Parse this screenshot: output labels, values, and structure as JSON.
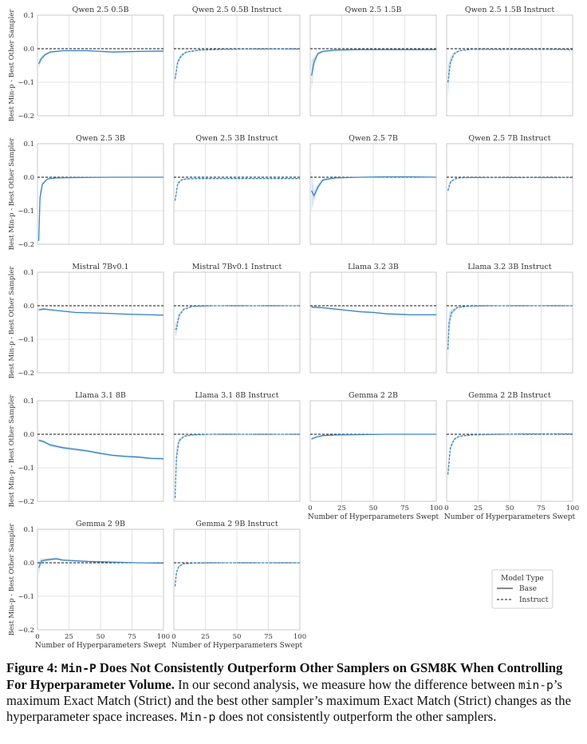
{
  "chart_data": {
    "type": "line",
    "grid": true,
    "ylabel": "Best Min-p - Best Other Sampler",
    "xlabel": "Number of Hyperparameters Swept",
    "xlim": [
      0,
      100
    ],
    "ylim": [
      -0.2,
      0.1
    ],
    "xticks": [
      0,
      25,
      50,
      75,
      100
    ],
    "yticks": [
      0.1,
      0.0,
      -0.1,
      -0.2
    ],
    "ytick_labels": [
      "0.1",
      "0.0",
      "−0.1",
      "−0.2"
    ],
    "reference_line": 0.0,
    "line_color": "#3a86c3",
    "legend": {
      "title": "Model Type",
      "position": "lower-right",
      "entries": [
        {
          "label": "Base",
          "style": "solid"
        },
        {
          "label": "Instruct",
          "style": "dashed"
        }
      ]
    },
    "panels": [
      {
        "title": "Qwen 2.5 0.5B",
        "model_type": "Base",
        "x": [
          1,
          3,
          6,
          10,
          20,
          40,
          60,
          80,
          100
        ],
        "y": [
          -0.045,
          -0.03,
          -0.018,
          -0.01,
          -0.006,
          -0.006,
          -0.01,
          -0.008,
          -0.007
        ],
        "band": [
          0.012,
          0.008,
          0.004,
          0.003,
          0.002,
          0.002,
          0.002,
          0.002,
          0.002
        ]
      },
      {
        "title": "Qwen 2.5 0.5B Instruct",
        "model_type": "Instruct",
        "x": [
          1,
          3,
          6,
          10,
          20,
          40,
          60,
          80,
          100
        ],
        "y": [
          -0.09,
          -0.04,
          -0.02,
          -0.01,
          -0.004,
          -0.002,
          -0.001,
          -0.001,
          -0.001
        ],
        "band": [
          0.015,
          0.01,
          0.006,
          0.003,
          0.002,
          0.001,
          0.001,
          0.001,
          0.001
        ]
      },
      {
        "title": "Qwen 2.5 1.5B",
        "model_type": "Base",
        "x": [
          1,
          3,
          6,
          10,
          20,
          40,
          60,
          80,
          100
        ],
        "y": [
          -0.08,
          -0.04,
          -0.015,
          -0.008,
          -0.004,
          -0.003,
          -0.003,
          -0.003,
          -0.003
        ],
        "band": [
          0.045,
          0.015,
          0.005,
          0.003,
          0.002,
          0.001,
          0.001,
          0.001,
          0.001
        ]
      },
      {
        "title": "Qwen 2.5 1.5B Instruct",
        "model_type": "Instruct",
        "x": [
          1,
          3,
          6,
          10,
          20,
          40,
          60,
          80,
          100
        ],
        "y": [
          -0.1,
          -0.04,
          -0.015,
          -0.006,
          -0.002,
          -0.002,
          -0.002,
          -0.002,
          -0.003
        ],
        "band": [
          0.05,
          0.015,
          0.005,
          0.002,
          0.001,
          0.001,
          0.001,
          0.001,
          0.001
        ]
      },
      {
        "title": "Qwen 2.5 3B",
        "model_type": "Base",
        "x": [
          1,
          2,
          4,
          8,
          15,
          30,
          60,
          100
        ],
        "y": [
          -0.19,
          -0.06,
          -0.02,
          -0.005,
          -0.002,
          -0.001,
          0.0,
          0.0
        ],
        "band": [
          0.01,
          0.02,
          0.006,
          0.002,
          0.001,
          0.001,
          0.001,
          0.001
        ]
      },
      {
        "title": "Qwen 2.5 3B Instruct",
        "model_type": "Instruct",
        "x": [
          1,
          3,
          6,
          10,
          20,
          40,
          60,
          80,
          100
        ],
        "y": [
          -0.07,
          -0.02,
          -0.008,
          -0.005,
          -0.004,
          -0.004,
          -0.004,
          -0.004,
          -0.004
        ],
        "band": [
          0.01,
          0.005,
          0.003,
          0.002,
          0.001,
          0.001,
          0.001,
          0.001,
          0.001
        ]
      },
      {
        "title": "Qwen 2.5 7B",
        "model_type": "Base",
        "x": [
          1,
          3,
          6,
          10,
          20,
          40,
          60,
          80,
          100
        ],
        "y": [
          -0.04,
          -0.055,
          -0.03,
          -0.008,
          -0.002,
          0.0,
          0.001,
          0.001,
          0.0
        ],
        "band": [
          0.06,
          0.015,
          0.01,
          0.004,
          0.002,
          0.001,
          0.001,
          0.001,
          0.001
        ]
      },
      {
        "title": "Qwen 2.5 7B Instruct",
        "model_type": "Instruct",
        "x": [
          1,
          3,
          6,
          10,
          20,
          40,
          60,
          80,
          100
        ],
        "y": [
          -0.04,
          -0.015,
          -0.006,
          -0.002,
          -0.001,
          -0.001,
          -0.001,
          -0.001,
          -0.001
        ],
        "band": [
          0.01,
          0.005,
          0.002,
          0.001,
          0.001,
          0.001,
          0.001,
          0.001,
          0.001
        ]
      },
      {
        "title": "Mistral 7Bv0.1",
        "model_type": "Base",
        "x": [
          1,
          5,
          10,
          20,
          30,
          50,
          70,
          90,
          100
        ],
        "y": [
          -0.012,
          -0.01,
          -0.012,
          -0.016,
          -0.02,
          -0.022,
          -0.025,
          -0.027,
          -0.028
        ],
        "band": [
          0.004,
          0.003,
          0.002,
          0.002,
          0.002,
          0.002,
          0.002,
          0.002,
          0.002
        ]
      },
      {
        "title": "Mistral 7Bv0.1 Instruct",
        "model_type": "Instruct",
        "x": [
          1,
          2,
          4,
          8,
          15,
          30,
          60,
          100
        ],
        "y": [
          -0.07,
          -0.07,
          -0.03,
          -0.01,
          -0.002,
          0.0,
          0.0,
          0.0
        ],
        "band": [
          0.02,
          0.02,
          0.008,
          0.003,
          0.001,
          0.001,
          0.001,
          0.001
        ]
      },
      {
        "title": "Llama 3.2 3B",
        "model_type": "Base",
        "x": [
          1,
          10,
          20,
          30,
          40,
          50,
          60,
          80,
          100
        ],
        "y": [
          -0.004,
          -0.006,
          -0.01,
          -0.014,
          -0.018,
          -0.02,
          -0.024,
          -0.027,
          -0.027
        ],
        "band": [
          0.003,
          0.002,
          0.002,
          0.002,
          0.002,
          0.002,
          0.002,
          0.002,
          0.002
        ]
      },
      {
        "title": "Llama 3.2 3B Instruct",
        "model_type": "Instruct",
        "x": [
          1,
          2,
          4,
          8,
          15,
          30,
          60,
          100
        ],
        "y": [
          -0.13,
          -0.05,
          -0.02,
          -0.006,
          -0.002,
          0.0,
          0.0,
          0.0
        ],
        "band": [
          0.07,
          0.03,
          0.01,
          0.003,
          0.001,
          0.001,
          0.001,
          0.001
        ]
      },
      {
        "title": "Llama 3.1 8B",
        "model_type": "Base",
        "x": [
          1,
          5,
          10,
          20,
          30,
          40,
          50,
          60,
          70,
          80,
          90,
          100
        ],
        "y": [
          -0.018,
          -0.022,
          -0.032,
          -0.04,
          -0.045,
          -0.05,
          -0.057,
          -0.063,
          -0.066,
          -0.068,
          -0.072,
          -0.073
        ],
        "band": [
          0.004,
          0.004,
          0.004,
          0.004,
          0.004,
          0.004,
          0.003,
          0.003,
          0.003,
          0.003,
          0.003,
          0.003
        ]
      },
      {
        "title": "Llama 3.1 8B Instruct",
        "model_type": "Instruct",
        "x": [
          1,
          2,
          4,
          8,
          15,
          30,
          60,
          100
        ],
        "y": [
          -0.19,
          -0.07,
          -0.02,
          -0.006,
          -0.002,
          0.0,
          0.0,
          0.0
        ],
        "band": [
          0.01,
          0.03,
          0.008,
          0.003,
          0.001,
          0.001,
          0.001,
          0.001
        ]
      },
      {
        "title": "Gemma 2 2B",
        "model_type": "Base",
        "x": [
          1,
          5,
          10,
          20,
          40,
          60,
          80,
          100
        ],
        "y": [
          -0.014,
          -0.008,
          -0.004,
          -0.002,
          -0.001,
          0.0,
          0.0,
          0.0
        ],
        "band": [
          0.004,
          0.002,
          0.002,
          0.001,
          0.001,
          0.001,
          0.001,
          0.001
        ]
      },
      {
        "title": "Gemma 2 2B Instruct",
        "model_type": "Instruct",
        "x": [
          1,
          3,
          6,
          10,
          20,
          40,
          60,
          80,
          100
        ],
        "y": [
          -0.12,
          -0.04,
          -0.015,
          -0.006,
          -0.002,
          0.0,
          0.001,
          0.001,
          0.001
        ],
        "band": [
          0.02,
          0.01,
          0.005,
          0.002,
          0.001,
          0.001,
          0.001,
          0.001,
          0.001
        ]
      },
      {
        "title": "Gemma 2 9B",
        "model_type": "Base",
        "x": [
          1,
          3,
          6,
          10,
          15,
          20,
          30,
          40,
          60,
          80,
          100
        ],
        "y": [
          -0.015,
          0.005,
          0.008,
          0.01,
          0.012,
          0.008,
          0.006,
          0.004,
          0.002,
          0.0,
          -0.001
        ],
        "band": [
          0.02,
          0.008,
          0.005,
          0.004,
          0.004,
          0.003,
          0.003,
          0.002,
          0.002,
          0.001,
          0.001
        ]
      },
      {
        "title": "Gemma 2 9B Instruct",
        "model_type": "Instruct",
        "x": [
          1,
          2,
          4,
          8,
          15,
          30,
          60,
          100
        ],
        "y": [
          -0.07,
          -0.03,
          -0.01,
          -0.003,
          -0.001,
          0.0,
          0.0,
          0.0
        ],
        "band": [
          0.012,
          0.006,
          0.003,
          0.001,
          0.001,
          0.001,
          0.001,
          0.001
        ]
      }
    ]
  },
  "caption": {
    "label": "Figure 4:",
    "bold_parts": [
      {
        "text": "Min-P",
        "mono": true
      },
      {
        "text": " Does Not Consistently Outperform Other Samplers on GSM8K When Controlling For Hyperparameter Volume.",
        "mono": false
      }
    ],
    "body_parts": [
      {
        "text": " In our second analysis, we measure how the difference between ",
        "mono": false
      },
      {
        "text": "min-p",
        "mono": true
      },
      {
        "text": "’s maximum Exact Match (Strict) and the best other sampler’s maximum Exact Match (Strict) changes as the hyperparameter space increases. ",
        "mono": false
      },
      {
        "text": "Min-p",
        "mono": true
      },
      {
        "text": " does not consistently outperform the other samplers.",
        "mono": false
      }
    ]
  }
}
